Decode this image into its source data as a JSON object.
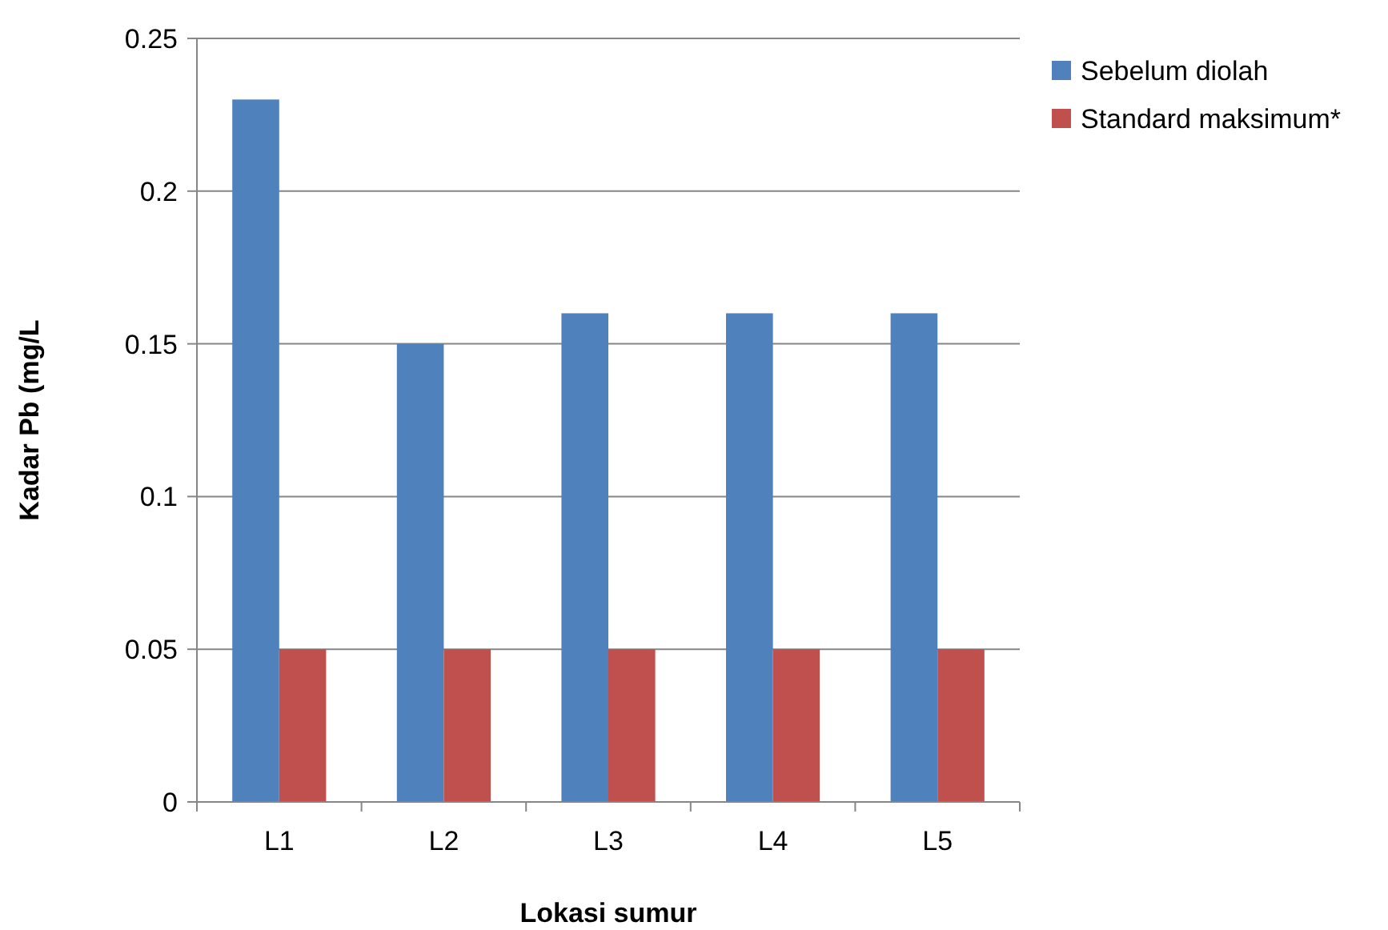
{
  "chart_data": {
    "type": "bar",
    "xlabel": "Lokasi sumur",
    "ylabel": "Kadar Pb (mg/L",
    "categories": [
      "L1",
      "L2",
      "L3",
      "L4",
      "L5"
    ],
    "series": [
      {
        "name": "Sebelum diolah",
        "color": "#4f81bd",
        "values": [
          0.23,
          0.15,
          0.16,
          0.16,
          0.16
        ]
      },
      {
        "name": "Standard maksimum*",
        "color": "#c0504d",
        "values": [
          0.05,
          0.05,
          0.05,
          0.05,
          0.05
        ]
      }
    ],
    "ylim": [
      0,
      0.25
    ],
    "yticks": [
      0,
      0.05,
      0.1,
      0.15,
      0.2,
      0.25
    ],
    "grid": "y",
    "legend": "top right"
  }
}
